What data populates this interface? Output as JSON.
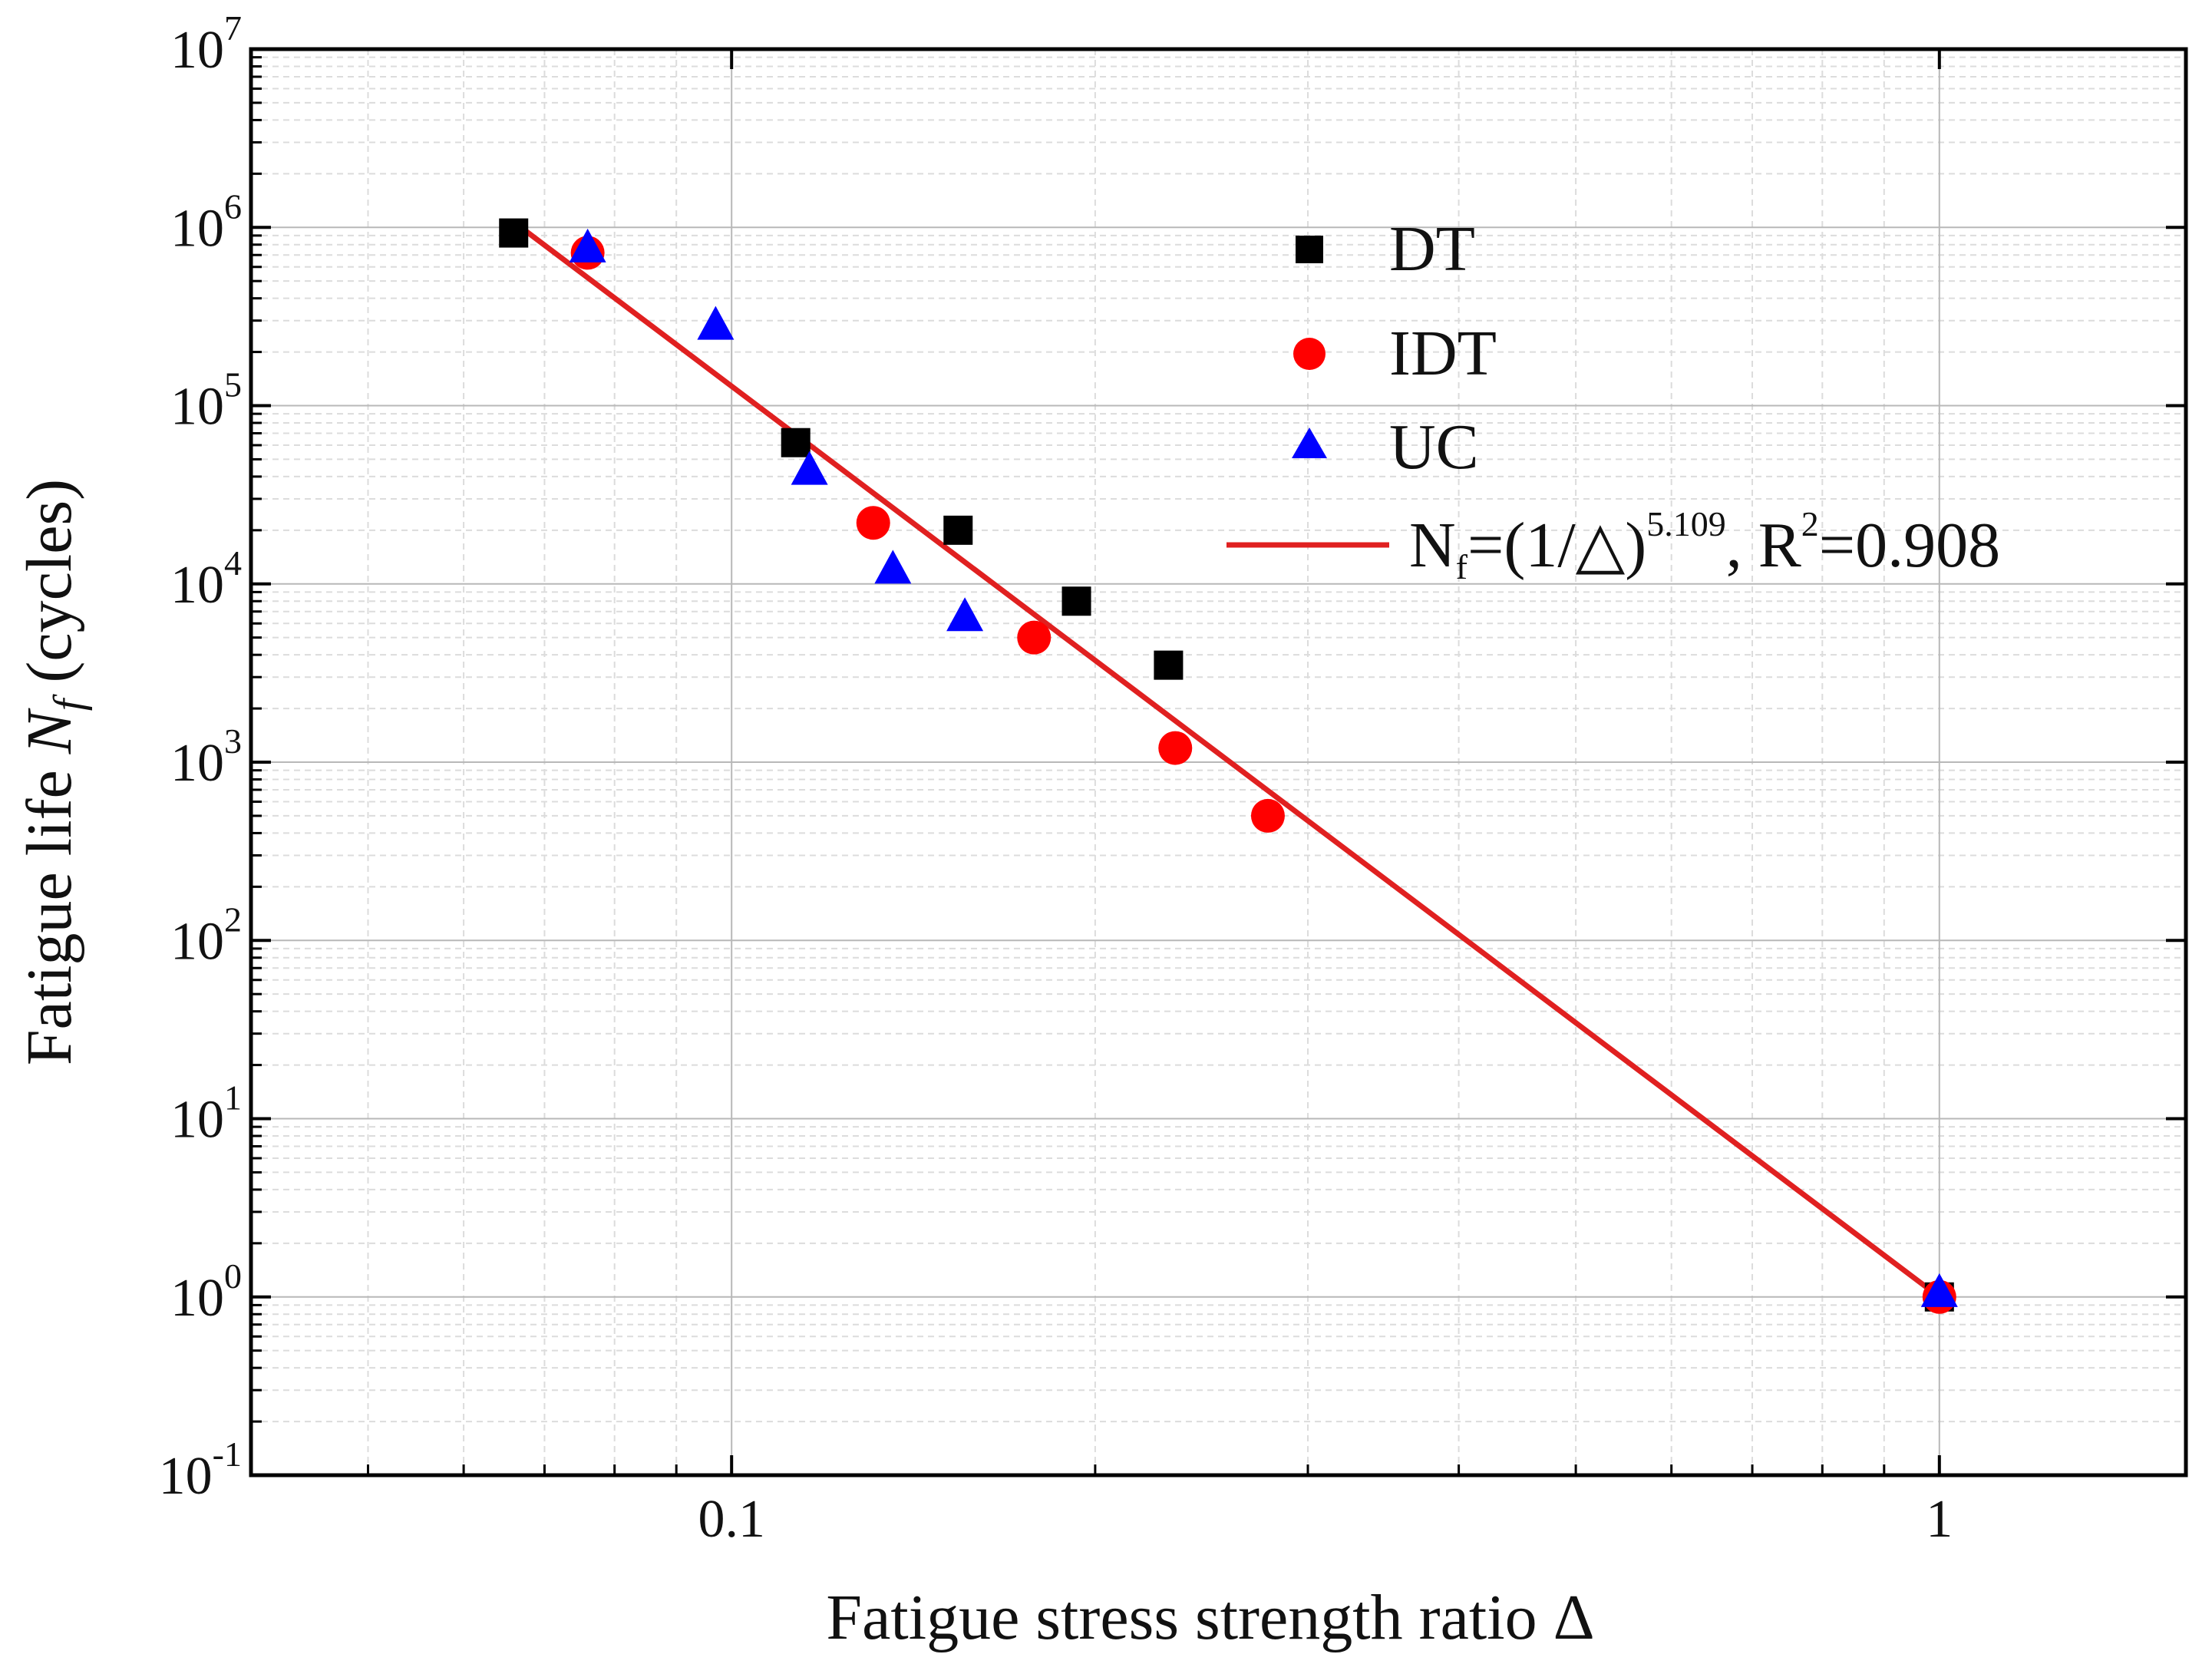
{
  "chart_data": {
    "type": "scatter",
    "xscale": "log",
    "yscale": "log",
    "xlim": [
      0.04,
      1.6
    ],
    "ylim": [
      0.1,
      10000000
    ],
    "grid": true,
    "xlabel": "Fatigue stress strength ratio Δ",
    "ylabel": {
      "prefix": "Fatigue life ",
      "symbol": "N",
      "subscript": "f",
      "suffix": " (cycles)"
    },
    "x_ticks": [
      {
        "value": 0.1,
        "label": "0.1"
      },
      {
        "value": 1,
        "label": "1"
      }
    ],
    "y_ticks": [
      {
        "value": 0.1,
        "base": "10",
        "exp": "-1"
      },
      {
        "value": 1,
        "base": "10",
        "exp": "0"
      },
      {
        "value": 10,
        "base": "10",
        "exp": "1"
      },
      {
        "value": 100,
        "base": "10",
        "exp": "2"
      },
      {
        "value": 1000,
        "base": "10",
        "exp": "3"
      },
      {
        "value": 10000,
        "base": "10",
        "exp": "4"
      },
      {
        "value": 100000,
        "base": "10",
        "exp": "5"
      },
      {
        "value": 1000000,
        "base": "10",
        "exp": "6"
      },
      {
        "value": 10000000,
        "base": "10",
        "exp": "7"
      }
    ],
    "series": [
      {
        "name": "DT",
        "marker": "square",
        "color": "#000000",
        "points": [
          {
            "x": 0.066,
            "y": 930000
          },
          {
            "x": 0.113,
            "y": 62000
          },
          {
            "x": 0.154,
            "y": 20000
          },
          {
            "x": 0.193,
            "y": 8000
          },
          {
            "x": 0.23,
            "y": 3500
          },
          {
            "x": 1.0,
            "y": 1
          }
        ]
      },
      {
        "name": "IDT",
        "marker": "circle",
        "color": "#ff0000",
        "points": [
          {
            "x": 0.076,
            "y": 720000
          },
          {
            "x": 0.131,
            "y": 22000
          },
          {
            "x": 0.178,
            "y": 5000
          },
          {
            "x": 0.233,
            "y": 1200
          },
          {
            "x": 0.278,
            "y": 500
          },
          {
            "x": 1.0,
            "y": 1
          }
        ]
      },
      {
        "name": "UC",
        "marker": "triangle",
        "color": "#0000ff",
        "points": [
          {
            "x": 0.076,
            "y": 760000
          },
          {
            "x": 0.097,
            "y": 280000
          },
          {
            "x": 0.116,
            "y": 43000
          },
          {
            "x": 0.136,
            "y": 12000
          },
          {
            "x": 0.156,
            "y": 6500
          },
          {
            "x": 1.0,
            "y": 1.05
          }
        ]
      }
    ],
    "fit": {
      "name": "fit",
      "color": "#e02020",
      "exponent": 5.109,
      "x_range": [
        0.066,
        1.0
      ],
      "label": {
        "pre": "N",
        "sub": "f",
        "mid": "=(1/△)",
        "sup": "5.109",
        "post": ", R",
        "sup2": "2",
        "end": "=0.908"
      }
    },
    "legend": {
      "position": "top-right"
    }
  }
}
